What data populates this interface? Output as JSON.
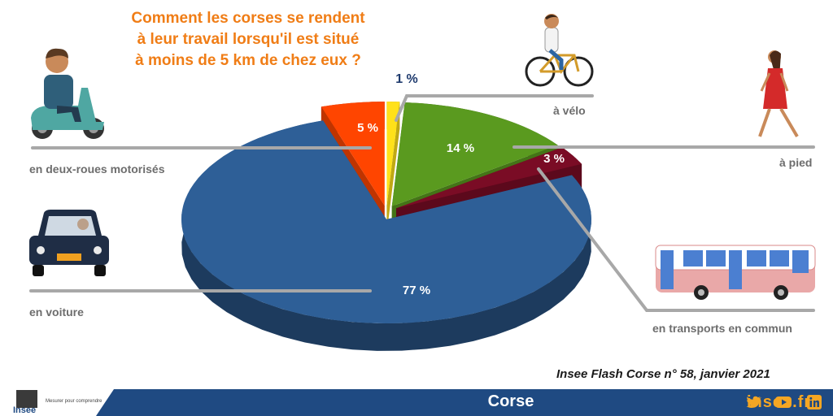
{
  "title_lines": [
    "Comment les corses se rendent",
    "à leur travail lorsqu'il est situé",
    "à moins de 5 km de chez eux ?"
  ],
  "chart_data": {
    "type": "pie",
    "title": "Comment les corses se rendent à leur travail lorsqu'il est situé à moins de 5 km de chez eux ?",
    "categories": [
      "en voiture",
      "en deux-roues motorisés",
      "à vélo",
      "à pied",
      "en transports en commun"
    ],
    "values": [
      77,
      5,
      1,
      14,
      3
    ],
    "value_labels": [
      "77 %",
      "5 %",
      "1 %",
      "14 %",
      "3 %"
    ],
    "colors": [
      "#2e5f97",
      "#ff4500",
      "#ffe11a",
      "#5a9a1f",
      "#7a0c25"
    ],
    "unit": "%"
  },
  "source": "Insee Flash Corse n° 58, janvier 2021",
  "footer": {
    "region": "Corse",
    "site": "insee.fr",
    "logo_word": "Insee",
    "logo_tagline": "Mesurer pour comprendre"
  },
  "icons": [
    "scooter-rider-icon",
    "bicycle-rider-icon",
    "walking-woman-icon",
    "car-driver-icon",
    "bus-icon",
    "twitter-icon",
    "youtube-icon",
    "linkedin-icon"
  ]
}
